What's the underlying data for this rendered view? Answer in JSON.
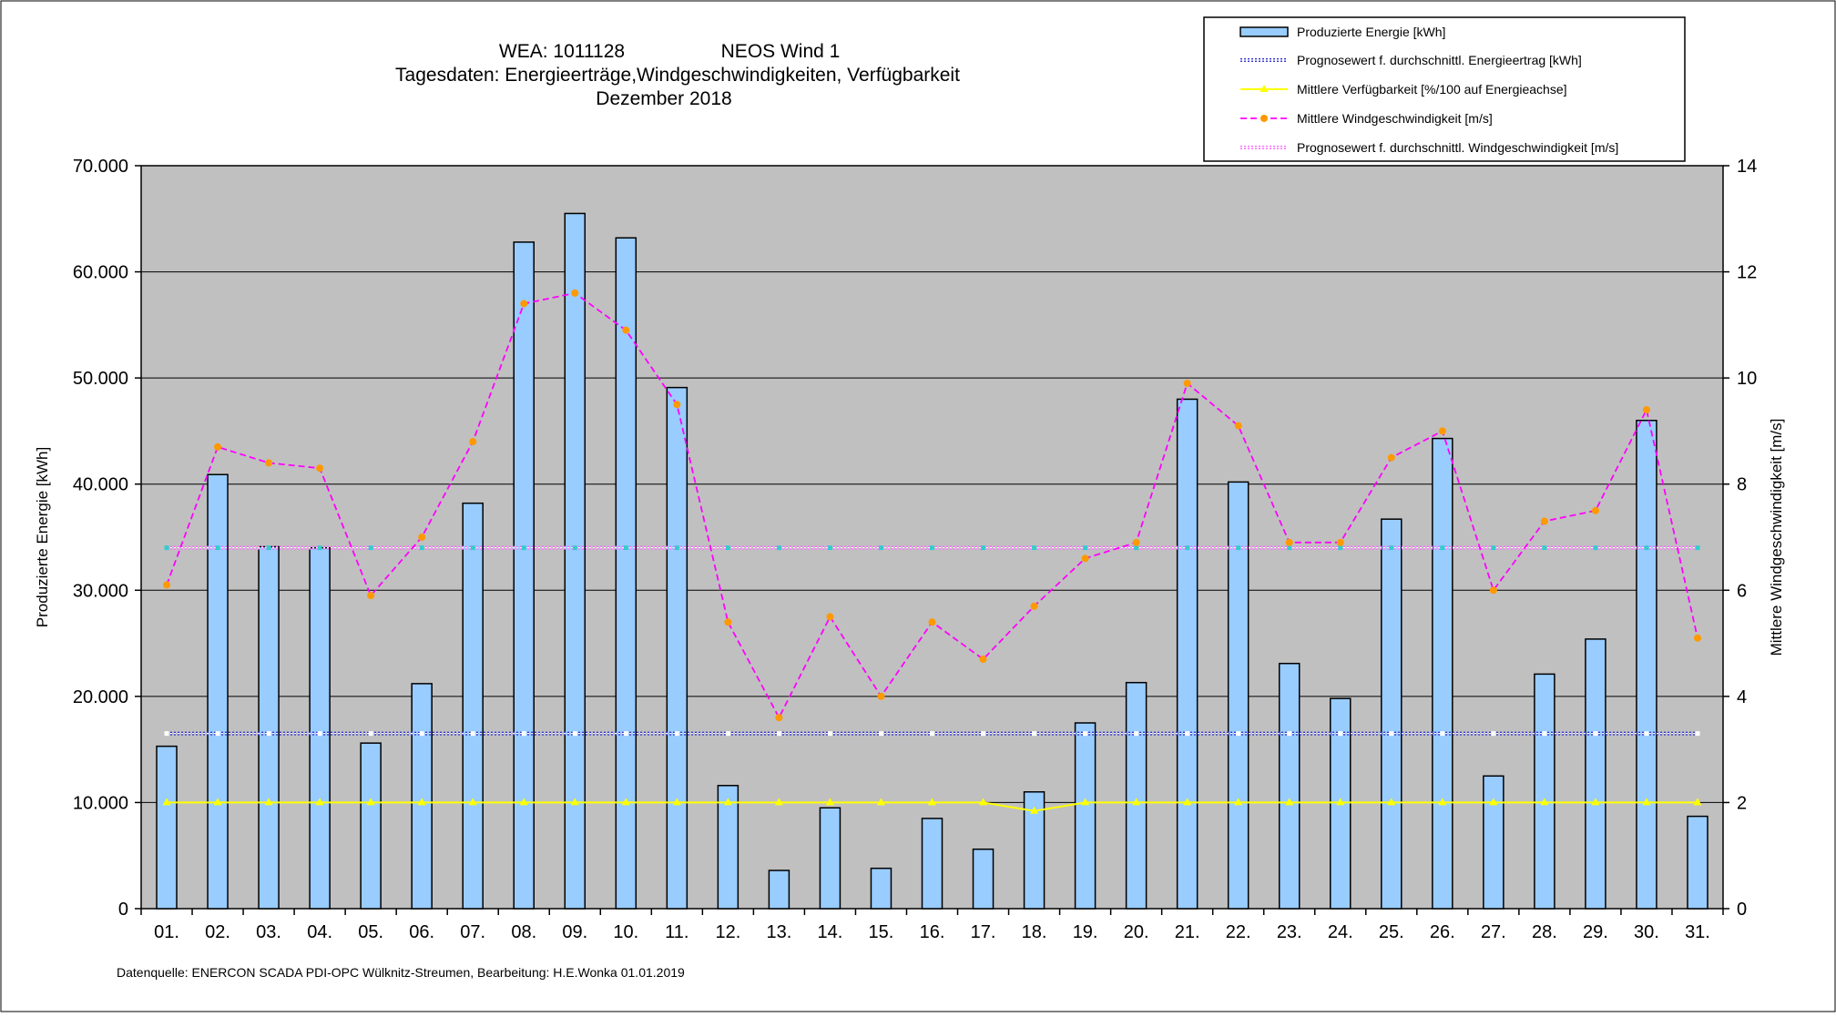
{
  "title": {
    "line1_left": "WEA: 1011128",
    "line1_right": "NEOS Wind 1",
    "line2": "Tagesdaten:  Energieerträge,Windgeschwindigkeiten,  Verfügbarkeit",
    "line3": "Dezember 2018"
  },
  "footer": "Datenquelle:  ENERCON  SCADA PDI-OPC Wülknitz-Streumen,     Bearbeitung:  H.E.Wonka     01.01.2019",
  "colors": {
    "background_plot": "#c0c0c0",
    "bar_fill": "#99ccff",
    "bar_stroke": "#000000",
    "energy_forecast": "#3333cc",
    "availability": "#ffff00",
    "wind": "#ff00ff",
    "wind_marker": "#ff9900",
    "wind_forecast": "#ff66ff",
    "wind_forecast_marker": "#33cccc",
    "grid": "#000000"
  },
  "chart_data": {
    "type": "bar",
    "categories": [
      "01.",
      "02.",
      "03.",
      "04.",
      "05.",
      "06.",
      "07.",
      "08.",
      "09.",
      "10.",
      "11.",
      "12.",
      "13.",
      "14.",
      "15.",
      "16.",
      "17.",
      "18.",
      "19.",
      "20.",
      "21.",
      "22.",
      "23.",
      "24.",
      "25.",
      "26.",
      "27.",
      "28.",
      "29.",
      "30.",
      "31."
    ],
    "ylabel": "Produzierte Energie [kWh]",
    "y2label": "Mittlere Windgeschwindigkeit [m/s]",
    "ylim": [
      0,
      70000
    ],
    "y2lim": [
      0,
      14
    ],
    "yticks": [
      "0",
      "10.000",
      "20.000",
      "30.000",
      "40.000",
      "50.000",
      "60.000",
      "70.000"
    ],
    "y2ticks": [
      "0",
      "2",
      "4",
      "6",
      "8",
      "10",
      "12",
      "14"
    ],
    "grid": "horizontal",
    "legend_position": "top-right",
    "series": [
      {
        "name": "Produzierte Energie [kWh]",
        "kind": "bar",
        "axis": "left",
        "values": [
          15300,
          40900,
          34100,
          34000,
          15600,
          21200,
          38200,
          62800,
          65500,
          63200,
          49100,
          11600,
          3600,
          9500,
          3800,
          8500,
          5600,
          11000,
          17500,
          21300,
          48000,
          40200,
          23100,
          19800,
          36700,
          44300,
          12500,
          22100,
          25400,
          46000,
          8700
        ]
      },
      {
        "name": "Prognosewert f. durchschnittl. Energieertrag  [kWh]",
        "kind": "line",
        "axis": "left",
        "values": [
          16500,
          16500,
          16500,
          16500,
          16500,
          16500,
          16500,
          16500,
          16500,
          16500,
          16500,
          16500,
          16500,
          16500,
          16500,
          16500,
          16500,
          16500,
          16500,
          16500,
          16500,
          16500,
          16500,
          16500,
          16500,
          16500,
          16500,
          16500,
          16500,
          16500,
          16500
        ]
      },
      {
        "name": "Mittlere Verfügbarkeit [%/100 auf Energieachse]",
        "kind": "line",
        "axis": "left",
        "values": [
          10000,
          10000,
          10000,
          10000,
          10000,
          10000,
          10000,
          10000,
          10000,
          10000,
          10000,
          10000,
          10000,
          10000,
          10000,
          10000,
          10000,
          9200,
          10000,
          10000,
          10000,
          10000,
          10000,
          10000,
          10000,
          10000,
          10000,
          10000,
          10000,
          10000,
          10000
        ]
      },
      {
        "name": "Mittlere Windgeschwindigkeit [m/s]",
        "kind": "line",
        "axis": "right",
        "values": [
          6.1,
          8.7,
          8.4,
          8.3,
          5.9,
          7.0,
          8.8,
          11.4,
          11.6,
          10.9,
          9.5,
          5.4,
          3.6,
          5.5,
          4.0,
          5.4,
          4.7,
          5.7,
          6.6,
          6.9,
          9.9,
          9.1,
          6.9,
          6.9,
          8.5,
          9.0,
          6.0,
          7.3,
          7.5,
          9.4,
          5.1
        ]
      },
      {
        "name": "Prognosewert f. durchschnittl. Windgeschwindigkeit [m/s]",
        "kind": "line",
        "axis": "right",
        "values": [
          6.8,
          6.8,
          6.8,
          6.8,
          6.8,
          6.8,
          6.8,
          6.8,
          6.8,
          6.8,
          6.8,
          6.8,
          6.8,
          6.8,
          6.8,
          6.8,
          6.8,
          6.8,
          6.8,
          6.8,
          6.8,
          6.8,
          6.8,
          6.8,
          6.8,
          6.8,
          6.8,
          6.8,
          6.8,
          6.8,
          6.8
        ]
      }
    ]
  }
}
